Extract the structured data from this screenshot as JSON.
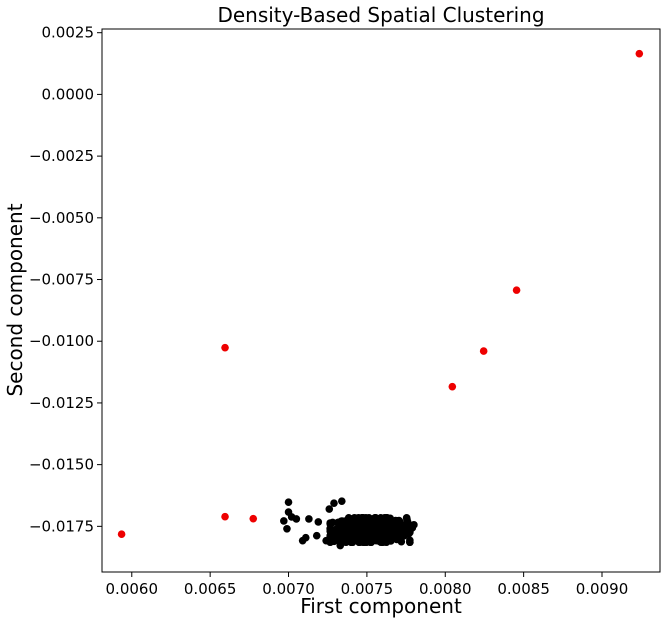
{
  "chart_data": {
    "type": "scatter",
    "title": "Density-Based Spatial Clustering",
    "xlabel": "First component",
    "ylabel": "Second component",
    "xlim": [
      0.00581,
      0.00937
    ],
    "ylim": [
      -0.01935,
      0.00265
    ],
    "xticks": [
      0.006,
      0.0065,
      0.007,
      0.0075,
      0.008,
      0.0085,
      0.009
    ],
    "xtick_labels": [
      "0.0060",
      "0.0065",
      "0.0070",
      "0.0075",
      "0.0080",
      "0.0085",
      "0.0090"
    ],
    "yticks": [
      0.0025,
      0.0,
      -0.0025,
      -0.005,
      -0.0075,
      -0.01,
      -0.0125,
      -0.015,
      -0.0175
    ],
    "ytick_labels": [
      "0.0025",
      "0.0000",
      "−0.0025",
      "−0.0050",
      "−0.0075",
      "−0.0100",
      "−0.0125",
      "−0.0150",
      "−0.0175"
    ],
    "grid": false,
    "series": [
      {
        "color": "#000000",
        "cluster": {
          "x_center": 0.00752,
          "x_spread": 0.00021,
          "y_center": -0.01765,
          "y_spread": 0.00045,
          "count": 700
        },
        "x": [
          0.007,
          0.007,
          0.00702,
          0.00697,
          0.00699,
          0.00705,
          0.00709,
          0.00713,
          0.00711,
          0.00718,
          0.00719,
          0.00724,
          0.00726,
          0.00729,
          0.00734,
          0.00733,
          0.00776,
          0.0078,
          0.00779,
          0.00772,
          0.00768
        ],
        "y": [
          -0.01652,
          -0.01692,
          -0.01712,
          -0.01728,
          -0.0176,
          -0.0172,
          -0.01808,
          -0.0172,
          -0.01796,
          -0.01788,
          -0.01732,
          -0.01808,
          -0.0168,
          -0.01656,
          -0.01648,
          -0.01828,
          -0.01732,
          -0.01744,
          -0.01756,
          -0.01812,
          -0.01788
        ]
      },
      {
        "color": "#ee0000",
        "x": [
          0.009238,
          0.008455,
          0.008245,
          0.008045,
          0.006595,
          0.006595,
          0.006775,
          0.005935
        ],
        "y": [
          0.00165,
          -0.00793,
          -0.0104,
          -0.01184,
          -0.01026,
          -0.01711,
          -0.01719,
          -0.01782
        ]
      }
    ]
  }
}
